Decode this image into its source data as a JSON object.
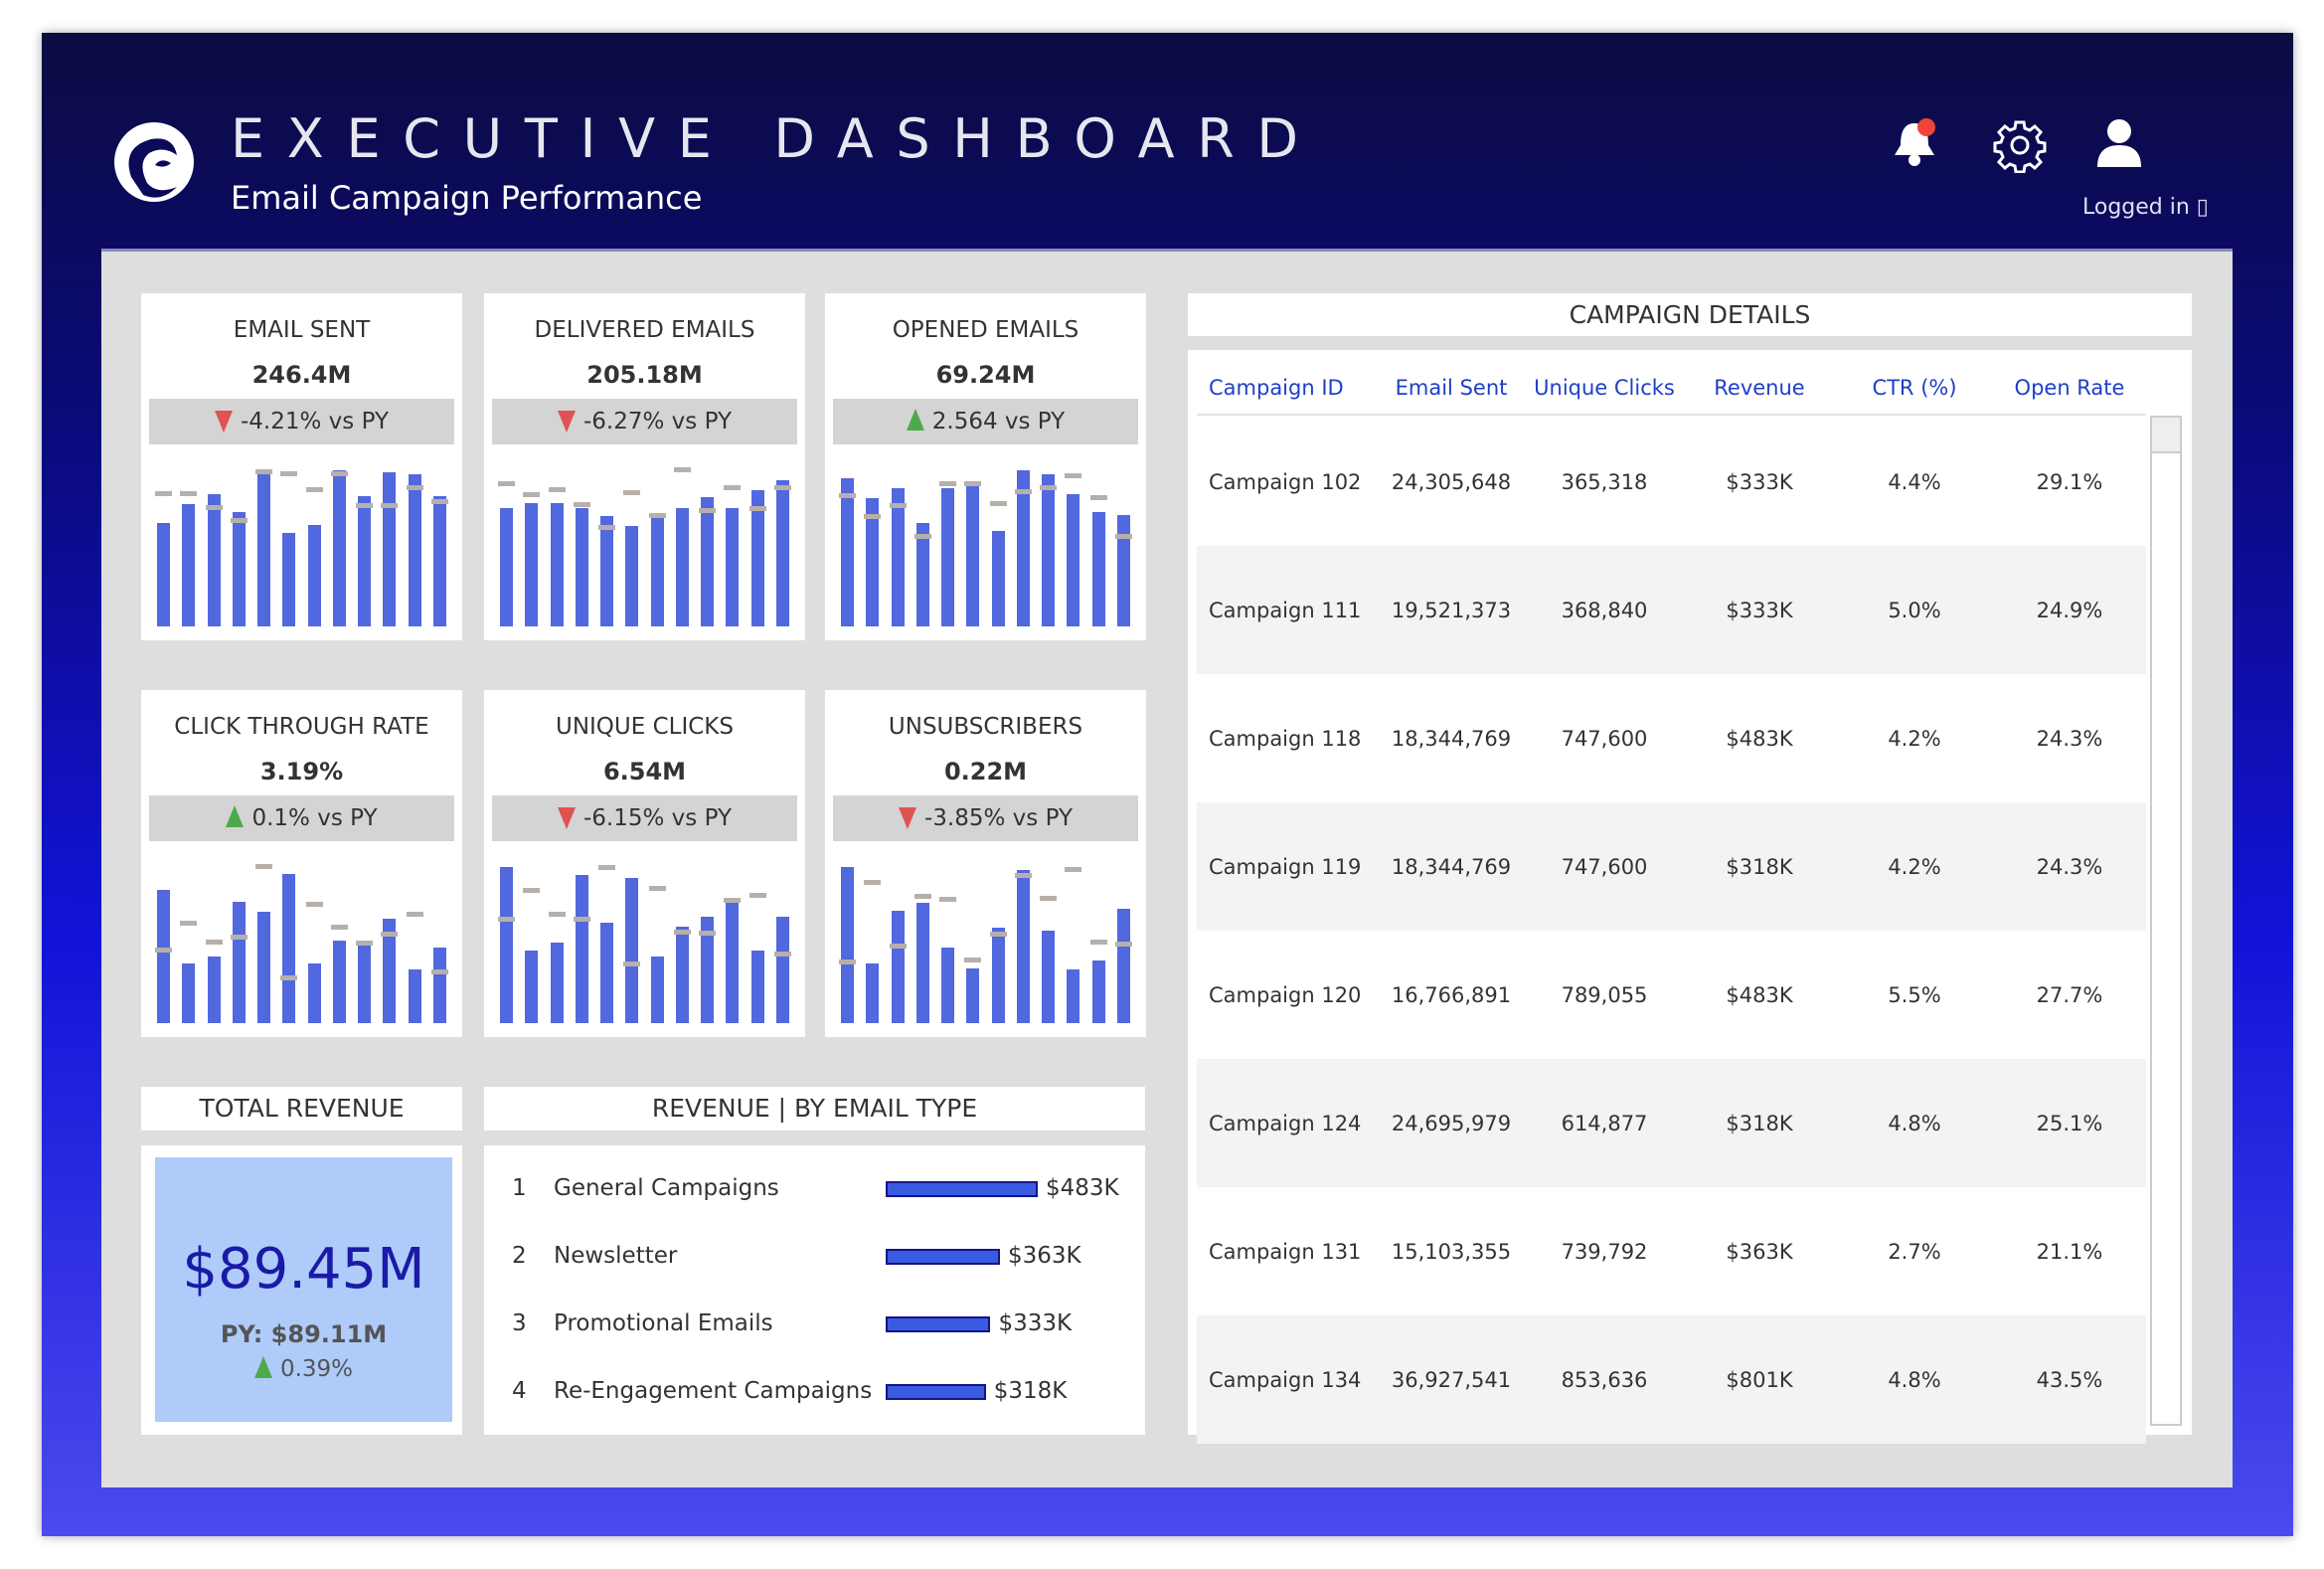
{
  "header": {
    "title": "EXECUTIVE DASHBOARD",
    "subtitle": "Email Campaign Performance",
    "logged_in": "Logged in ▯",
    "icons": [
      "logo",
      "bell-icon",
      "gear-icon",
      "user-icon"
    ],
    "notification_dot_color": "#f04438"
  },
  "colors": {
    "bar": "#5168de",
    "marker": "#b7b0aa",
    "down": "#e05353",
    "up": "#4caa4c",
    "revenue_box": "#aecbfa"
  },
  "kpis": [
    {
      "title": "EMAIL SENT",
      "value": "246.4M",
      "delta": "-4.21% vs PY",
      "direction": "down",
      "bars": [
        245,
        288,
        312,
        269,
        360,
        221,
        240,
        369,
        307,
        364,
        359,
        307
      ],
      "markers": [
        312,
        312,
        279,
        250,
        364,
        360,
        322,
        360,
        284,
        284,
        327,
        293
      ]
    },
    {
      "title": "DELIVERED EMAILS",
      "value": "205.18M",
      "delta": "-6.27% vs PY",
      "direction": "down",
      "bars": [
        273,
        283,
        283,
        273,
        254,
        230,
        250,
        273,
        297,
        273,
        312,
        335
      ],
      "markers": [
        326,
        302,
        312,
        278,
        226,
        307,
        254,
        359,
        264,
        317,
        269,
        317
      ]
    },
    {
      "title": "OPENED EMAILS",
      "value": "69.24M",
      "delta": "2.564 vs PY",
      "direction": "up",
      "bars": [
        350,
        302,
        326,
        245,
        326,
        335,
        226,
        369,
        359,
        312,
        269,
        264
      ],
      "markers": [
        307,
        259,
        283,
        212,
        336,
        336,
        288,
        317,
        326,
        355,
        302,
        212
      ]
    },
    {
      "title": "CLICK THROUGH RATE",
      "value": "3.19%",
      "delta": "0.1% vs PY",
      "direction": "up",
      "bars": [
        92,
        41,
        46,
        84,
        77,
        103,
        41,
        57,
        57,
        72,
        37,
        52
      ],
      "markers": [
        50,
        69,
        56,
        59,
        108,
        31,
        82,
        66,
        55,
        61,
        75,
        35
      ]
    },
    {
      "title": "UNIQUE CLICKS",
      "value": "6.54M",
      "delta": "-6.15% vs PY",
      "direction": "down",
      "bars": [
        112,
        52,
        58,
        106,
        72,
        104,
        48,
        69,
        76,
        88,
        52,
        76
      ],
      "markers": [
        74,
        95,
        78,
        74,
        111,
        42,
        96,
        65,
        64,
        88,
        91,
        49
      ]
    },
    {
      "title": "UNSUBSCRIBERS",
      "value": "0.22M",
      "delta": "-3.85% vs PY",
      "direction": "down",
      "bars": [
        108,
        41,
        78,
        83,
        52,
        38,
        66,
        106,
        64,
        37,
        43,
        79
      ],
      "markers": [
        42,
        97,
        53,
        87,
        85,
        43,
        61,
        102,
        86,
        106,
        56,
        54
      ]
    }
  ],
  "total_revenue": {
    "title": "TOTAL REVENUE",
    "value": "$89.45M",
    "py": "PY: $89.11M",
    "delta": "0.39%",
    "direction": "up"
  },
  "revenue_by_type": {
    "title": "REVENUE | BY EMAIL TYPE",
    "items": [
      {
        "rank": "1",
        "name": "General Campaigns",
        "value": "$483K",
        "amount": 483
      },
      {
        "rank": "2",
        "name": "Newsletter",
        "value": "$363K",
        "amount": 363
      },
      {
        "rank": "3",
        "name": "Promotional Emails",
        "value": "$333K",
        "amount": 333
      },
      {
        "rank": "4",
        "name": "Re-Engagement Campaigns",
        "value": "$318K",
        "amount": 318
      }
    ]
  },
  "campaign_details": {
    "title": "CAMPAIGN DETAILS",
    "columns": [
      "Campaign ID",
      "Email Sent",
      "Unique Clicks",
      "Revenue",
      "CTR (%)",
      "Open Rate"
    ],
    "rows": [
      [
        "Campaign 102",
        "24,305,648",
        "365,318",
        "$333K",
        "4.4%",
        "29.1%"
      ],
      [
        "Campaign 111",
        "19,521,373",
        "368,840",
        "$333K",
        "5.0%",
        "24.9%"
      ],
      [
        "Campaign 118",
        "18,344,769",
        "747,600",
        "$483K",
        "4.2%",
        "24.3%"
      ],
      [
        "Campaign 119",
        "18,344,769",
        "747,600",
        "$318K",
        "4.2%",
        "24.3%"
      ],
      [
        "Campaign 120",
        "16,766,891",
        "789,055",
        "$483K",
        "5.5%",
        "27.7%"
      ],
      [
        "Campaign 124",
        "24,695,979",
        "614,877",
        "$318K",
        "4.8%",
        "25.1%"
      ],
      [
        "Campaign 131",
        "15,103,355",
        "739,792",
        "$363K",
        "2.7%",
        "21.1%"
      ],
      [
        "Campaign 134",
        "36,927,541",
        "853,636",
        "$801K",
        "4.8%",
        "43.5%"
      ]
    ]
  }
}
